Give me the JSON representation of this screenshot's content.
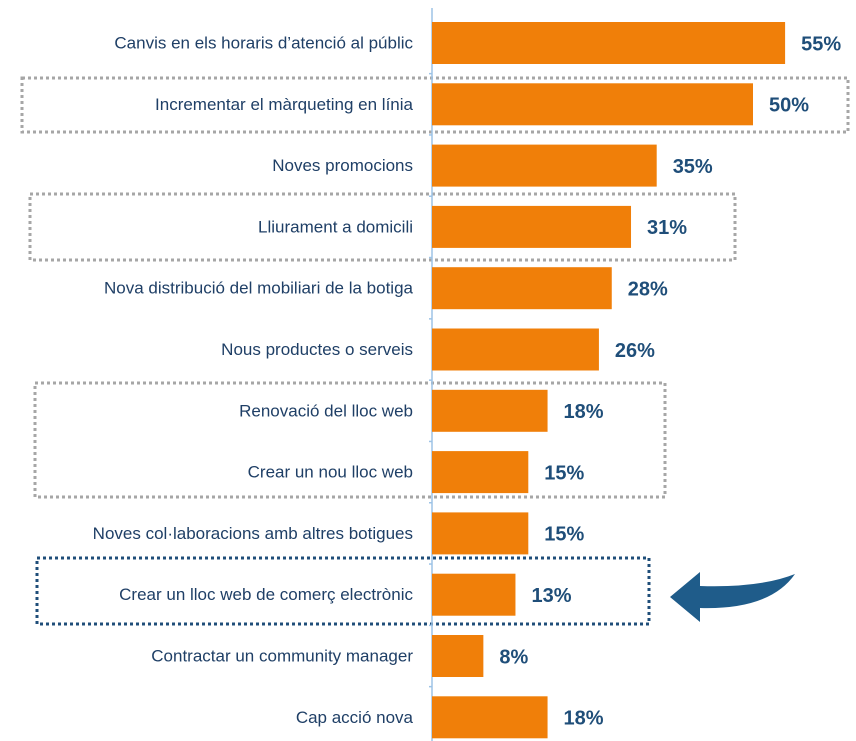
{
  "chart_data": {
    "type": "bar",
    "orientation": "horizontal",
    "categories": [
      "Canvis en els horaris d’atenció al públic",
      "Incrementar el màrqueting en línia",
      "Noves promocions",
      "Lliurament a domicili",
      "Nova distribució del mobiliari de la botiga",
      "Nous productes o serveis",
      "Renovació del lloc web",
      "Crear un nou lloc web",
      "Noves col·laboracions amb altres botigues",
      "Crear un lloc web de comerç electrònic",
      "Contractar un community manager",
      "Cap acció nova"
    ],
    "values": [
      55,
      50,
      35,
      31,
      28,
      26,
      18,
      15,
      15,
      13,
      8,
      18
    ],
    "value_labels": [
      "55%",
      "50%",
      "35%",
      "31%",
      "28%",
      "26%",
      "18%",
      "15%",
      "15%",
      "13%",
      "8%",
      "18%"
    ],
    "color": "#f07f09"
  }
}
